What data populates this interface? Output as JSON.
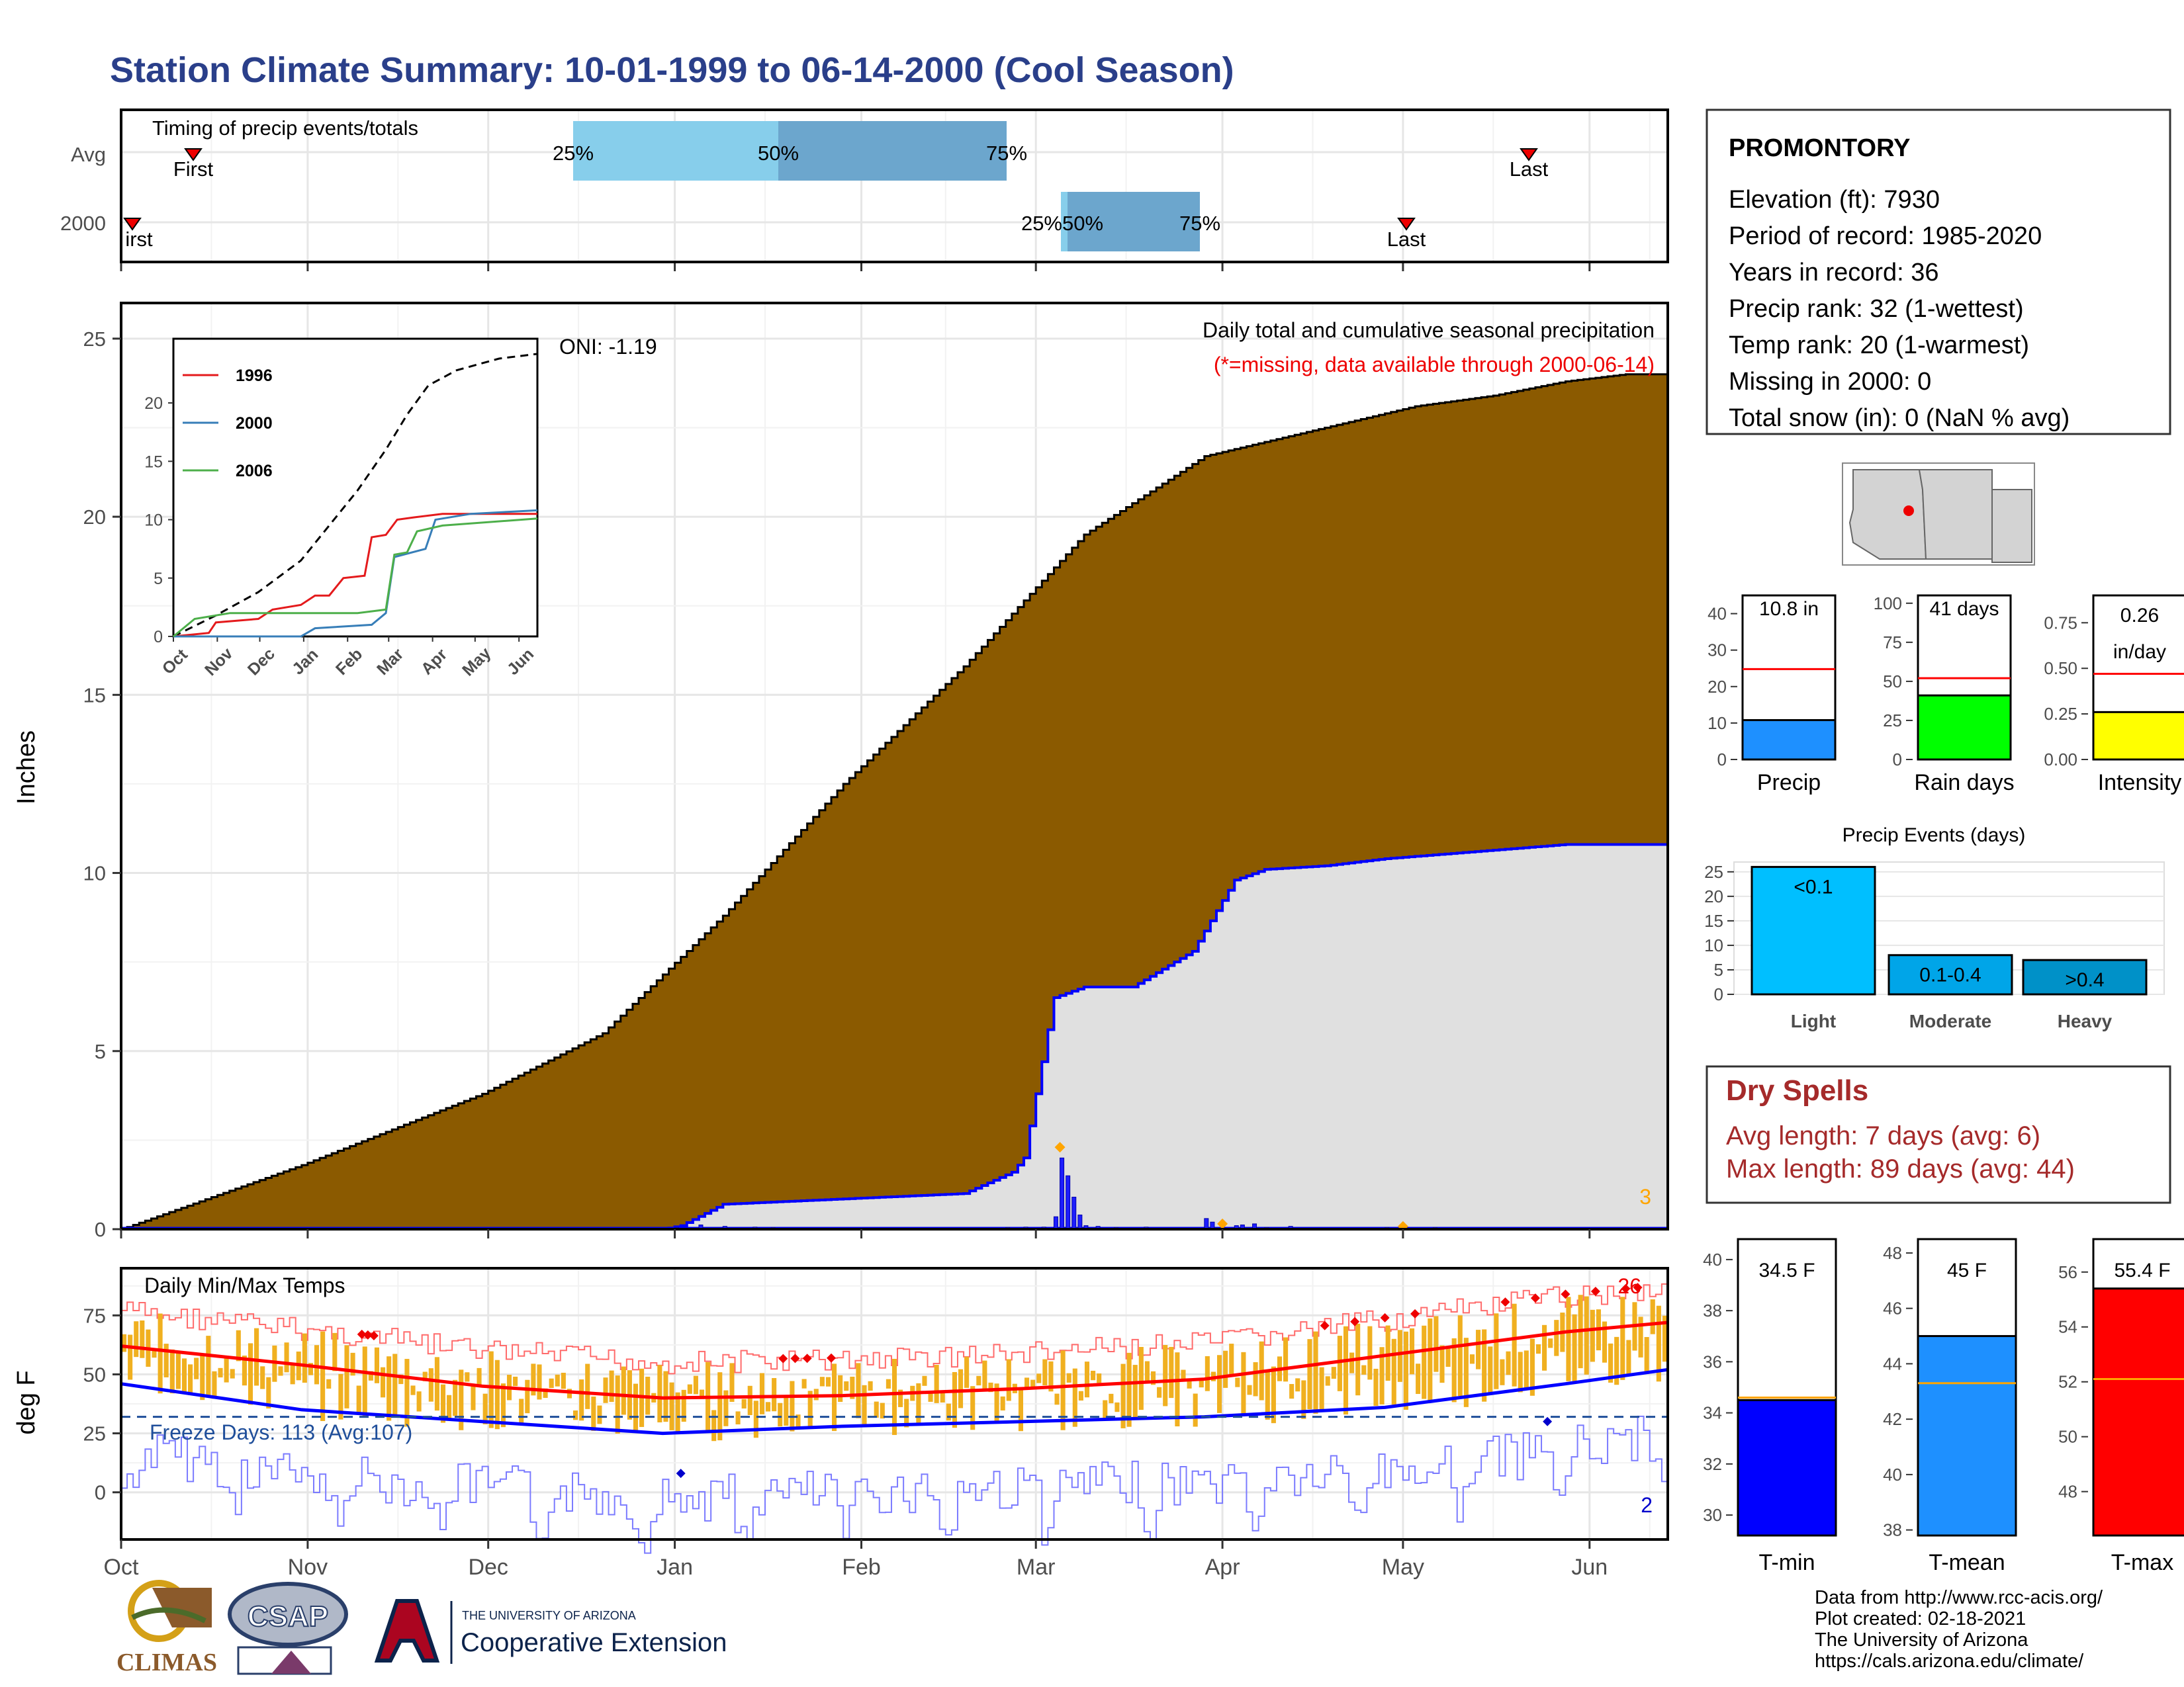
{
  "title": "Station Climate Summary: 10-01-1999 to 06-14-2000 (Cool Season)",
  "month_labels": [
    "Oct",
    "Nov",
    "Dec",
    "Jan",
    "Feb",
    "Mar",
    "Apr",
    "May",
    "Jun"
  ],
  "timing": {
    "title": "Timing of precip events/totals",
    "rows": [
      "Avg",
      "2000"
    ],
    "avg": {
      "first_label": "First",
      "last_label": "Last",
      "p25": "25%",
      "p50": "50%",
      "p75": "75%"
    },
    "y2000": {
      "first_label": "irst",
      "last_label": "Last",
      "p25p50": "25%50%",
      "p75": "75%"
    }
  },
  "precip_panel": {
    "ylabel": "Inches",
    "yticks": [
      "0",
      "5",
      "10",
      "15",
      "20",
      "25"
    ],
    "title": "Daily total and cumulative seasonal precipitation",
    "note": "(*=missing, data available through 2000-06-14)",
    "oni": "ONI: -1.19",
    "corner_count": "3",
    "colors": {
      "avg_fill": "#8B5A00",
      "season_fill": "#E0E0E0",
      "season_line": "#0000FF"
    }
  },
  "inset": {
    "yticks": [
      "0",
      "5",
      "10",
      "15",
      "20"
    ],
    "months": [
      "Oct",
      "Nov",
      "Dec",
      "Jan",
      "Feb",
      "Mar",
      "Apr",
      "May",
      "Jun"
    ],
    "legend": [
      {
        "name": "1996",
        "color": "#E41A1C"
      },
      {
        "name": "2000",
        "color": "#377EB8"
      },
      {
        "name": "2006",
        "color": "#4DAF4A"
      }
    ]
  },
  "temp_panel": {
    "ylabel": "deg F",
    "yticks": [
      "0",
      "25",
      "50",
      "75"
    ],
    "title": "Daily Min/Max Temps",
    "freeze": "Freeze Days: 113 (Avg:107)",
    "max_count": "26",
    "min_count": "2"
  },
  "station": {
    "name": "PROMONTORY",
    "lines": [
      "Elevation (ft): 7930",
      "Period of record: 1985-2020",
      "Years in record: 36",
      "Precip rank: 32 (1-wettest)",
      "Temp rank: 20 (1-warmest)",
      "Missing in 2000: 0",
      "Total snow (in): 0 (NaN % avg)"
    ]
  },
  "summary_bars": [
    {
      "label": "Precip",
      "value_text": "10.8 in",
      "yticks": [
        "0",
        "10",
        "20",
        "30",
        "40"
      ],
      "color": "#1E90FF"
    },
    {
      "label": "Rain days",
      "value_text": "41 days",
      "yticks": [
        "0",
        "25",
        "50",
        "75",
        "100"
      ],
      "color": "#00FF00"
    },
    {
      "label": "Intensity",
      "value_text": "0.26",
      "value_text2": "in/day",
      "yticks": [
        "0.00",
        "0.25",
        "0.50",
        "0.75"
      ],
      "color": "#FFFF00"
    }
  ],
  "precip_events": {
    "title": "Precip Events (days)",
    "yticks": [
      "0",
      "5",
      "10",
      "15",
      "20",
      "25"
    ],
    "bars": [
      {
        "cat": "Light",
        "label": "<0.1",
        "value": 26,
        "color": "#00BFFF"
      },
      {
        "cat": "Moderate",
        "label": "0.1-0.4",
        "value": 8,
        "color": "#00A5E8"
      },
      {
        "cat": "Heavy",
        "label": ">0.4",
        "value": 7,
        "color": "#0091C8"
      }
    ]
  },
  "dry_spells": {
    "title": "Dry Spells",
    "avg": "Avg length: 7 days (avg: 6)",
    "max": "Max length: 89 days (avg: 44)"
  },
  "temp_bars": [
    {
      "label": "T-min",
      "value_text": "34.5 F",
      "yticks": [
        "30",
        "32",
        "34",
        "36",
        "38",
        "40"
      ],
      "color": "#0000FF"
    },
    {
      "label": "T-mean",
      "value_text": "45 F",
      "yticks": [
        "38",
        "40",
        "42",
        "44",
        "46",
        "48"
      ],
      "color": "#1E90FF"
    },
    {
      "label": "T-max",
      "value_text": "55.4 F",
      "yticks": [
        "48",
        "50",
        "52",
        "54",
        "56"
      ],
      "color": "#FF0000"
    }
  ],
  "footer": {
    "lines": [
      "Data from http://www.rcc-acis.org/",
      "Plot created: 02-18-2021",
      "The University of Arizona",
      "https://cals.arizona.edu/climate/"
    ],
    "climas": "CLIMAS",
    "csap": "CSAP",
    "ua_small": "THE UNIVERSITY OF ARIZONA",
    "ua_big": "Cooperative Extension"
  },
  "chart_data": [
    {
      "type": "area",
      "title": "Daily total and cumulative seasonal precipitation",
      "ylabel": "Inches",
      "ylim": [
        0,
        26
      ],
      "x_months": [
        "Oct",
        "Nov",
        "Dec",
        "Jan",
        "Feb",
        "Mar",
        "Apr",
        "May",
        "Jun"
      ],
      "series": [
        {
          "name": "average cumulative",
          "x_days": [
            0,
            30,
            60,
            80,
            100,
            120,
            140,
            160,
            180,
            200,
            215,
            228,
            240,
            250,
            257
          ],
          "values": [
            0,
            1.8,
            3.8,
            5.5,
            8.8,
            12.5,
            15.8,
            19.5,
            21.7,
            22.5,
            23.1,
            23.4,
            23.8,
            24.0,
            24.0
          ]
        },
        {
          "name": "2000 cumulative",
          "x_days": [
            0,
            90,
            93,
            100,
            140,
            148,
            150,
            155,
            160,
            168,
            178,
            185,
            190,
            200,
            210,
            240,
            257
          ],
          "values": [
            0,
            0,
            0.1,
            0.7,
            1.0,
            1.6,
            2.0,
            6.5,
            6.8,
            6.8,
            7.8,
            9.8,
            10.1,
            10.2,
            10.4,
            10.8,
            10.8
          ]
        }
      ]
    },
    {
      "type": "line",
      "title": "Daily Min/Max Temps",
      "ylabel": "deg F",
      "ylim": [
        -20,
        95
      ],
      "series": [
        {
          "name": "avg max",
          "x_days": [
            0,
            30,
            60,
            90,
            120,
            150,
            180,
            210,
            240,
            257
          ],
          "values": [
            62,
            54,
            45,
            40,
            41,
            44,
            48,
            58,
            68,
            72
          ]
        },
        {
          "name": "avg min",
          "x_days": [
            0,
            30,
            60,
            90,
            120,
            150,
            180,
            210,
            240,
            257
          ],
          "values": [
            46,
            35,
            30,
            25,
            28,
            30,
            32,
            36,
            46,
            52
          ]
        }
      ]
    },
    {
      "type": "bar",
      "title": "Precip Events (days)",
      "categories": [
        "Light",
        "Moderate",
        "Heavy"
      ],
      "values": [
        26,
        8,
        7
      ]
    }
  ]
}
